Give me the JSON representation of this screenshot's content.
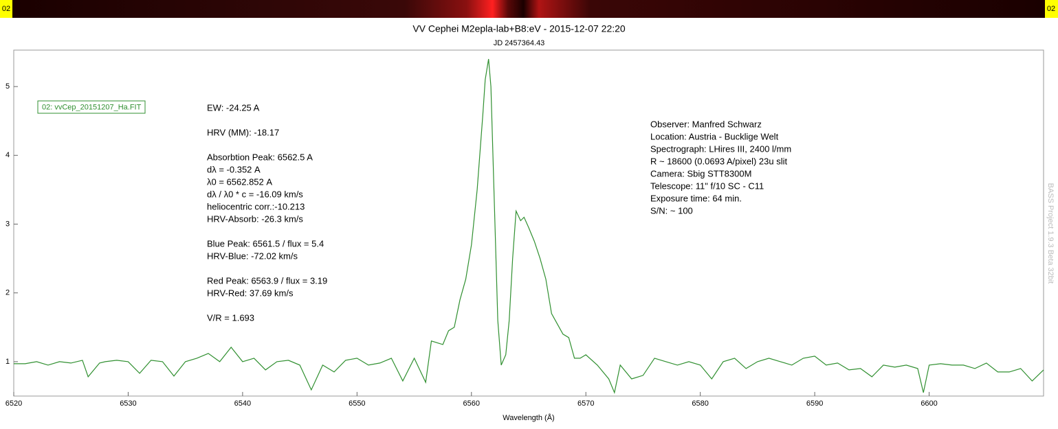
{
  "spectrum_strip": {
    "left_label": "02",
    "right_label": "02"
  },
  "chart_data": {
    "type": "line",
    "title": "VV Cephei M2epla-lab+B8:eV - 2015-12-07 22:20",
    "subtitle": "JD 2457364.43",
    "x_label": "Wavelength (Å)",
    "xlim": [
      6520,
      6610
    ],
    "ylim": [
      0.5,
      5.53
    ],
    "xticks": [
      6520,
      6530,
      6540,
      6550,
      6560,
      6570,
      6580,
      6590,
      6600
    ],
    "yticks": [
      1,
      2,
      3,
      4,
      5
    ],
    "x": [
      6520,
      6521,
      6522,
      6523,
      6524,
      6525,
      6526,
      6526.5,
      6527.5,
      6528,
      6529,
      6530,
      6531,
      6532,
      6533,
      6534,
      6535,
      6536,
      6537,
      6538,
      6539,
      6540,
      6541,
      6542,
      6543,
      6544,
      6545,
      6546,
      6547,
      6548,
      6549,
      6550,
      6551,
      6552,
      6553,
      6554,
      6555,
      6556,
      6556.5,
      6557.5,
      6558,
      6558.5,
      6559,
      6559.5,
      6560,
      6560.5,
      6561,
      6561.2,
      6561.5,
      6561.7,
      6562,
      6562.3,
      6562.6,
      6563,
      6563.3,
      6563.6,
      6563.9,
      6564.3,
      6564.6,
      6565,
      6565.5,
      6566,
      6566.5,
      6567,
      6567.5,
      6568,
      6568.5,
      6569,
      6569.5,
      6570,
      6571,
      6572,
      6572.5,
      6573,
      6574,
      6575,
      6576,
      6577,
      6578,
      6579,
      6580,
      6581,
      6582,
      6583,
      6584,
      6585,
      6586,
      6587,
      6588,
      6589,
      6590,
      6591,
      6592,
      6593,
      6594,
      6595,
      6596,
      6597,
      6598,
      6599,
      6599.5,
      6600,
      6601,
      6602,
      6603,
      6604,
      6605,
      6606,
      6607,
      6608,
      6609,
      6610
    ],
    "series": [
      {
        "name": "02: vvCep_20151207_Ha.FIT",
        "color": "#2f8f2f",
        "values": [
          0.97,
          0.97,
          1.0,
          0.95,
          1.0,
          0.98,
          1.02,
          0.78,
          0.98,
          1.0,
          1.02,
          1.0,
          0.83,
          1.02,
          1.0,
          0.79,
          1.0,
          1.05,
          1.12,
          1.0,
          1.21,
          1.0,
          1.05,
          0.88,
          1.0,
          1.02,
          0.95,
          0.59,
          0.95,
          0.85,
          1.02,
          1.05,
          0.95,
          0.98,
          1.05,
          0.72,
          1.05,
          0.7,
          1.3,
          1.25,
          1.45,
          1.5,
          1.9,
          2.2,
          2.7,
          3.5,
          4.6,
          5.1,
          5.4,
          5.0,
          3.3,
          1.6,
          0.95,
          1.1,
          1.6,
          2.5,
          3.19,
          3.05,
          3.1,
          2.95,
          2.75,
          2.5,
          2.2,
          1.7,
          1.55,
          1.4,
          1.35,
          1.05,
          1.05,
          1.1,
          0.95,
          0.75,
          0.55,
          0.95,
          0.75,
          0.8,
          1.05,
          1.0,
          0.95,
          1.0,
          0.95,
          0.75,
          1.0,
          1.05,
          0.9,
          1.0,
          1.05,
          1.0,
          0.95,
          1.05,
          1.08,
          0.95,
          0.98,
          0.88,
          0.9,
          0.78,
          0.95,
          0.92,
          0.95,
          0.9,
          0.55,
          0.95,
          0.97,
          0.95,
          0.95,
          0.9,
          0.98,
          0.85,
          0.85,
          0.9,
          0.72,
          0.88
        ]
      }
    ],
    "notes": [
      [
        "EW: -24.25 A"
      ],
      [
        "HRV (MM): -18.17"
      ],
      [
        "Absorbtion Peak: 6562.5 A",
        "dλ = -0.352 A",
        "λ0 = 6562.852 A",
        "dλ / λ0 * c = -16.09 km/s",
        "heliocentric corr.:-10.213",
        "HRV-Absorb: -26.3 km/s"
      ],
      [
        "Blue Peak: 6561.5 / flux = 5.4",
        "HRV-Blue: -72.02 km/s"
      ],
      [
        "Red Peak: 6563.9 / flux = 3.19",
        "HRV-Red: 37.69 km/s"
      ],
      [
        "V/R = 1.693"
      ]
    ],
    "observer_info": [
      "Observer: Manfred Schwarz",
      "Location: Austria - Bucklige Welt",
      "Spectrograph: LHires III, 2400 l/mm",
      "R ~ 18600 (0.0693 A/pixel) 23u slit",
      "Camera: Sbig STT8300M",
      "Telescope: 11\" f/10 SC - C11",
      "Exposure time: 64 min.",
      "S/N:  ~ 100"
    ],
    "watermark": "BASS Project 1.9.3 Beta 32bit"
  }
}
